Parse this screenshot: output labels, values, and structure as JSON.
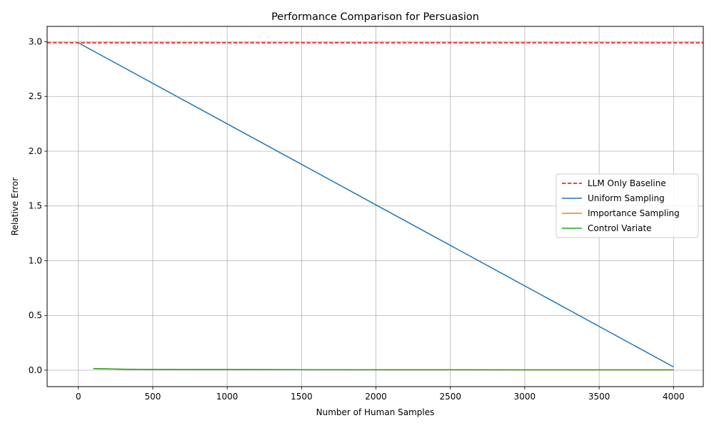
{
  "chart_data": {
    "type": "line",
    "title": "Performance Comparison for Persuasion",
    "xlabel": "Number of Human Samples",
    "ylabel": "Relative Error",
    "xlim": [
      -210,
      4200
    ],
    "ylim": [
      -0.15,
      3.14
    ],
    "xticks": [
      0,
      500,
      1000,
      1500,
      2000,
      2500,
      3000,
      3500,
      4000
    ],
    "xtick_labels": [
      "0",
      "500",
      "1000",
      "1500",
      "2000",
      "2500",
      "3000",
      "3500",
      "4000"
    ],
    "yticks": [
      0.0,
      0.5,
      1.0,
      1.5,
      2.0,
      2.5,
      3.0
    ],
    "ytick_labels": [
      "0.0",
      "0.5",
      "1.0",
      "1.5",
      "2.0",
      "2.5",
      "3.0"
    ],
    "grid": true,
    "legend_position": "center-right",
    "baseline": {
      "name": "LLM Only Baseline",
      "value": 2.99,
      "color": "#ff0000",
      "style": "dashed"
    },
    "series": [
      {
        "name": "Uniform Sampling",
        "color": "#1f77b4",
        "x": [
          0,
          4000
        ],
        "y": [
          2.99,
          0.03
        ]
      },
      {
        "name": "Importance Sampling",
        "color": "#ff7f0e",
        "x": [
          100,
          200,
          300,
          400,
          500,
          1000,
          1500,
          2000,
          2500,
          3000,
          3500,
          4000
        ],
        "y": [
          0.014,
          0.012,
          0.009,
          0.008,
          0.007,
          0.006,
          0.005,
          0.004,
          0.004,
          0.003,
          0.003,
          0.003
        ]
      },
      {
        "name": "Control Variate",
        "color": "#2ca02c",
        "x": [
          100,
          200,
          300,
          400,
          500,
          1000,
          1500,
          2000,
          2500,
          3000,
          3500,
          4000
        ],
        "y": [
          0.015,
          0.012,
          0.009,
          0.008,
          0.007,
          0.006,
          0.005,
          0.004,
          0.004,
          0.003,
          0.003,
          0.003
        ]
      }
    ]
  }
}
